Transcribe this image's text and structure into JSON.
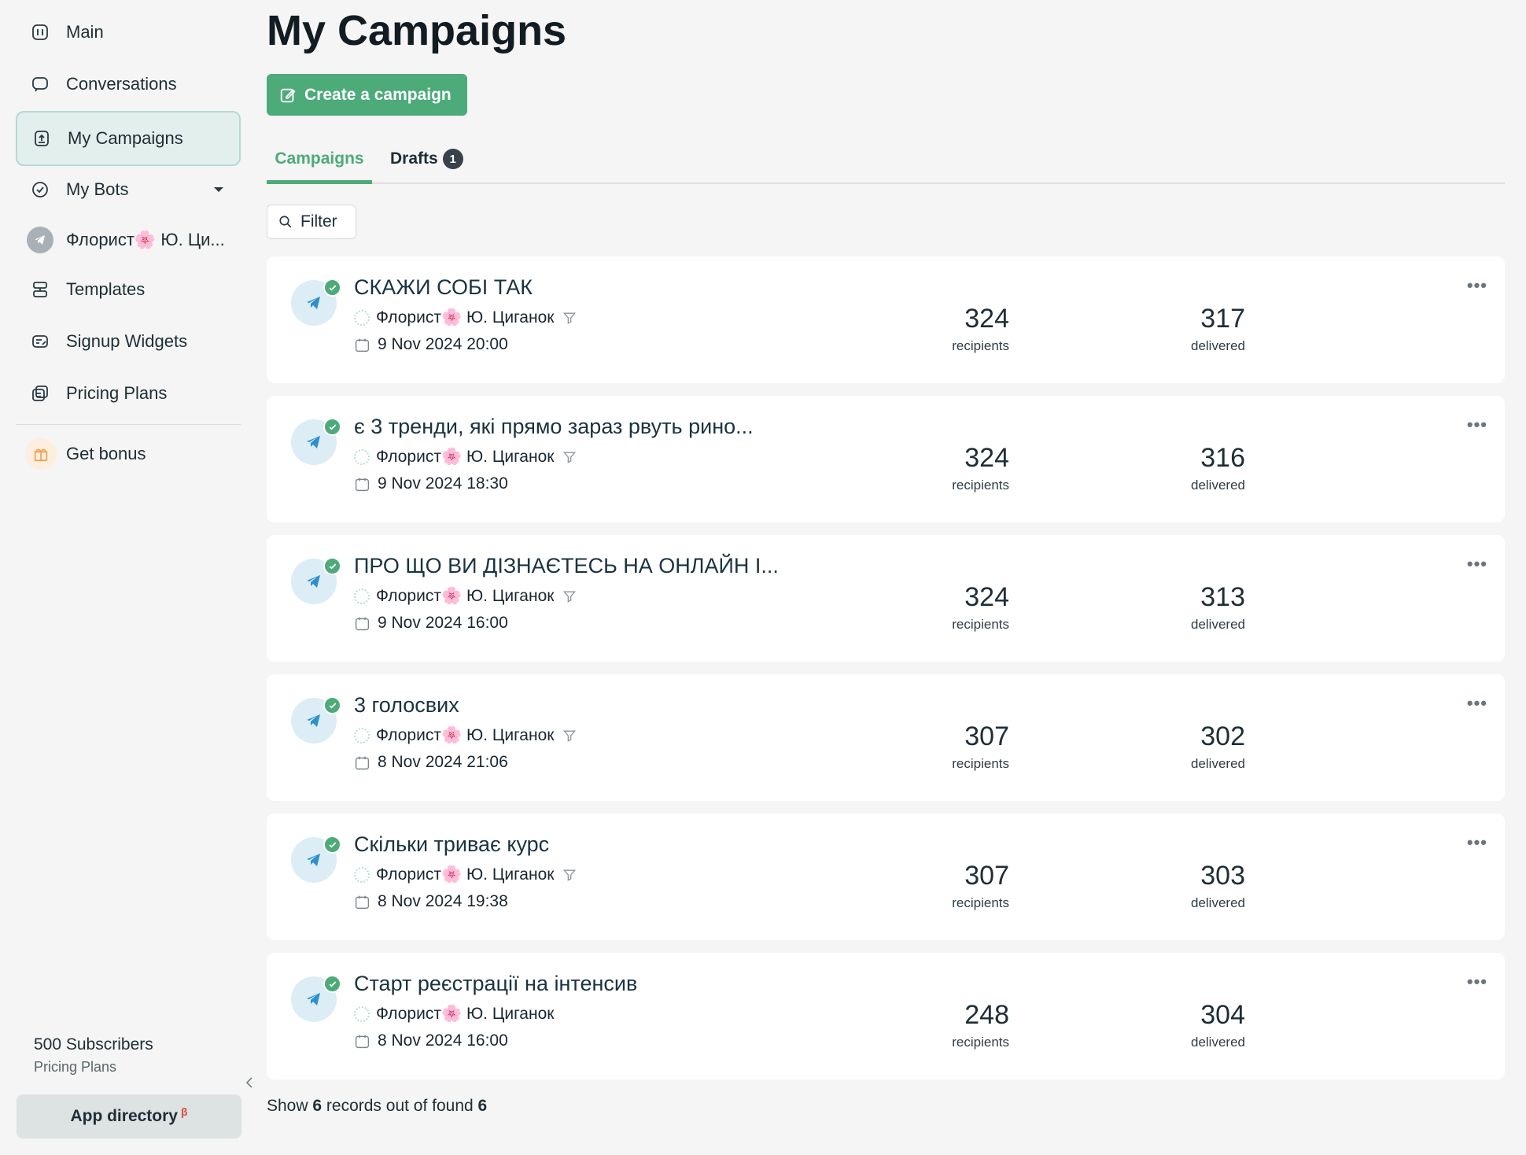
{
  "sidebar": {
    "items": [
      {
        "label": "Main",
        "icon": "dashboard-icon"
      },
      {
        "label": "Conversations",
        "icon": "chat-icon"
      },
      {
        "label": "My Campaigns",
        "icon": "campaign-icon",
        "active": true
      },
      {
        "label": "My Bots",
        "icon": "bots-icon"
      },
      {
        "label": "Флорист🌸 Ю. Ци...",
        "icon": "telegram-icon"
      },
      {
        "label": "Templates",
        "icon": "templates-icon"
      },
      {
        "label": "Signup Widgets",
        "icon": "widget-icon"
      },
      {
        "label": "Pricing Plans",
        "icon": "pricing-icon"
      },
      {
        "label": "Get bonus",
        "icon": "gift-icon"
      }
    ],
    "subscribers": "500 Subscribers",
    "pricing_link": "Pricing Plans",
    "app_directory": "App directory",
    "app_directory_badge": "β"
  },
  "main": {
    "title": "My Campaigns",
    "create_button": "Create a campaign",
    "tabs": [
      {
        "label": "Campaigns",
        "active": true
      },
      {
        "label": "Drafts",
        "badge": "1"
      }
    ],
    "filter_label": "Filter",
    "campaigns": [
      {
        "title": "СКАЖИ СОБІ ТАК",
        "bot": "Флорист🌸 Ю. Циганок",
        "date": "9 Nov 2024 20:00",
        "recipients": "324",
        "delivered": "317"
      },
      {
        "title": "є 3 тренди, які прямо зараз рвуть рино...",
        "bot": "Флорист🌸 Ю. Циганок",
        "date": "9 Nov 2024 18:30",
        "recipients": "324",
        "delivered": "316"
      },
      {
        "title": "ПРО ЩО ВИ ДІЗНАЄТЕСЬ НА ОНЛАЙН І...",
        "bot": "Флорист🌸 Ю. Циганок",
        "date": "9 Nov 2024 16:00",
        "recipients": "324",
        "delivered": "313"
      },
      {
        "title": "3 голосвих",
        "bot": "Флорист🌸 Ю. Циганок",
        "date": "8 Nov 2024 21:06",
        "recipients": "307",
        "delivered": "302"
      },
      {
        "title": "Скільки триває курс",
        "bot": "Флорист🌸 Ю. Циганок",
        "date": "8 Nov 2024 19:38",
        "recipients": "307",
        "delivered": "303"
      },
      {
        "title": "Старт реєстрації на інтенсив",
        "bot": "Флорист🌸 Ю. Циганок",
        "date": "8 Nov 2024 16:00",
        "recipients": "248",
        "delivered": "304"
      }
    ],
    "stat_labels": {
      "recipients": "recipients",
      "delivered": "delivered"
    },
    "footer": {
      "prefix": "Show",
      "shown": "6",
      "middle": "records out of found",
      "total": "6"
    }
  },
  "colors": {
    "accent": "#4daa79",
    "active_bg": "#e3efec",
    "telegram": "#2d8fd0"
  }
}
